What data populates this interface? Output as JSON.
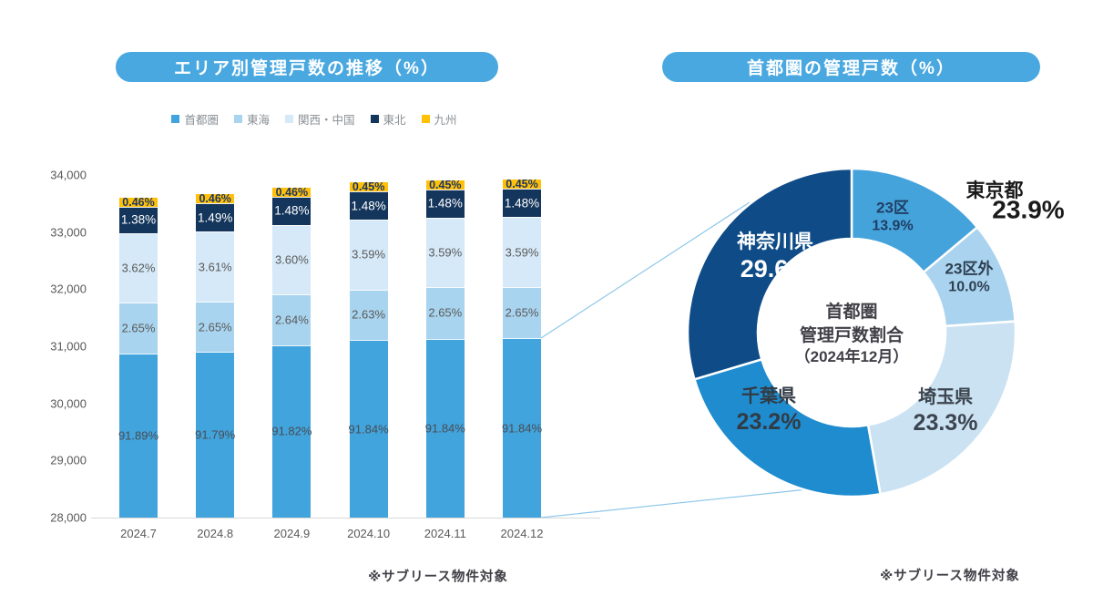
{
  "left": {
    "title": "エリア別管理戸数の推移（%）",
    "footnote": "※サブリース物件対象"
  },
  "right": {
    "title": "首都圏の管理戸数（%）",
    "footnote": "※サブリース物件対象"
  },
  "colors": {
    "title_pill": "#49A8E0",
    "axis_text": "#595959",
    "connector_line": "#8CC6E8"
  },
  "chart_data": [
    {
      "type": "bar",
      "stacked": true,
      "title": "エリア別管理戸数の推移（%）",
      "categories": [
        "2024.7",
        "2024.8",
        "2024.9",
        "2024.10",
        "2024.11",
        "2024.12"
      ],
      "series": [
        {
          "name": "首都圏",
          "color": "#41A4DD",
          "values_pct": [
            91.89,
            91.79,
            91.82,
            91.84,
            91.84,
            91.84
          ]
        },
        {
          "name": "東海",
          "color": "#A9D4EF",
          "values_pct": [
            2.65,
            2.65,
            2.64,
            2.63,
            2.65,
            2.65
          ]
        },
        {
          "name": "関西・中国",
          "color": "#D6E9F8",
          "values_pct": [
            3.62,
            3.61,
            3.6,
            3.59,
            3.59,
            3.59
          ]
        },
        {
          "name": "東北",
          "color": "#14365C",
          "values_pct": [
            1.38,
            1.49,
            1.48,
            1.48,
            1.48,
            1.48
          ]
        },
        {
          "name": "九州",
          "color": "#FFC008",
          "values_pct": [
            0.46,
            0.46,
            0.46,
            0.45,
            0.45,
            0.45
          ]
        }
      ],
      "totals_estimated": [
        33600,
        33660,
        33780,
        33870,
        33900,
        33910
      ],
      "ylim": [
        28000,
        34000
      ],
      "yticks": [
        "34,000",
        "33,000",
        "32,000",
        "31,000",
        "30,000",
        "29,000",
        "28,000"
      ],
      "grid": false,
      "legend_position": "top",
      "footnote": "※サブリース物件対象"
    },
    {
      "type": "pie",
      "donut": true,
      "title": "首都圏の管理戸数（%）",
      "slices": [
        {
          "name": "23区",
          "pct": 13.9,
          "pct_label": "13.9%",
          "color": "#45A3DC"
        },
        {
          "name": "23区外",
          "pct": 10.0,
          "pct_label": "10.0%",
          "color": "#A9D3EE"
        },
        {
          "name": "埼玉県",
          "pct": 23.3,
          "pct_label": "23.3%",
          "color": "#CBE2F3"
        },
        {
          "name": "千葉県",
          "pct": 23.2,
          "pct_label": "23.2%",
          "color": "#1E8CCE"
        },
        {
          "name": "神奈川県",
          "pct": 29.6,
          "pct_label": "29.6%",
          "color": "#0E4B87"
        }
      ],
      "outside_label": {
        "name": "東京都",
        "pct_label": "23.9%"
      },
      "center_label": {
        "line1": "首都圏",
        "line2": "管理戸数割合",
        "line3": "（2024年12月）"
      },
      "footnote": "※サブリース物件対象"
    }
  ]
}
